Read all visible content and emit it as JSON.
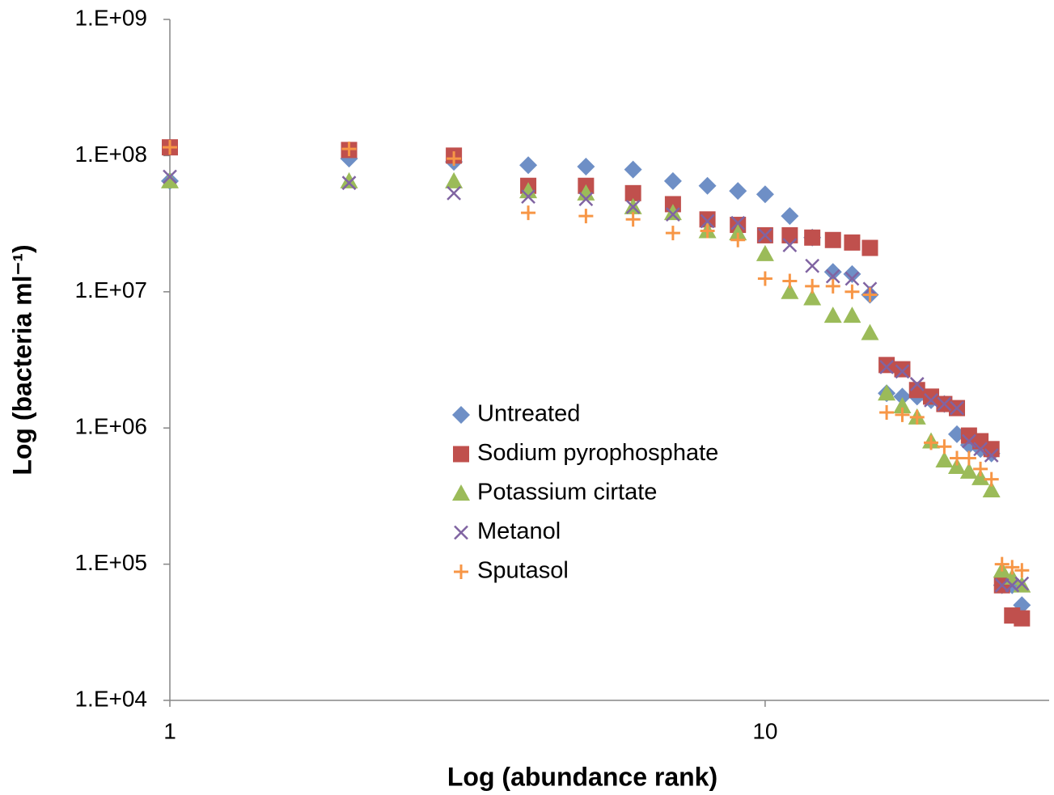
{
  "chart_data": {
    "type": "scatter",
    "x_label": "Log (abundance rank)",
    "y_label": "Log (bacteria ml⁻¹)",
    "xlog": true,
    "ylog": true,
    "xlim": [
      1,
      30
    ],
    "ylim": [
      10000,
      1000000000
    ],
    "xticks": [
      1,
      10
    ],
    "yticks": [
      {
        "value": 10000,
        "label": "1.E+04"
      },
      {
        "value": 100000,
        "label": "1.E+05"
      },
      {
        "value": 1000000,
        "label": "1.E+06"
      },
      {
        "value": 10000000,
        "label": "1.E+07"
      },
      {
        "value": 100000000,
        "label": "1.E+08"
      },
      {
        "value": 1000000000,
        "label": "1.E+09"
      }
    ],
    "x": [
      1,
      2,
      3,
      4,
      5,
      6,
      7,
      8,
      9,
      10,
      11,
      12,
      13,
      14,
      15,
      16,
      17,
      18,
      19,
      20,
      21,
      22,
      23,
      24,
      25,
      26,
      27
    ],
    "series": [
      {
        "name": "Untreated",
        "color": "#6e8fc6",
        "marker": "diamond",
        "values": [
          65000000,
          95000000,
          90000000,
          85000000,
          83000000,
          79000000,
          65000000,
          60000000,
          55000000,
          52000000,
          36000000,
          25000000,
          14000000,
          13500000,
          9500000,
          1800000,
          1700000,
          1700000,
          1600000,
          1500000,
          900000,
          750000,
          700000,
          650000,
          70000,
          70000,
          50000
        ]
      },
      {
        "name": "Sodium pyrophosphate",
        "color": "#c0504d",
        "marker": "square",
        "values": [
          115000000,
          110000000,
          100000000,
          60000000,
          60000000,
          53000000,
          44000000,
          34000000,
          31000000,
          26000000,
          26000000,
          25000000,
          24000000,
          23000000,
          21000000,
          2900000,
          2700000,
          1900000,
          1700000,
          1500000,
          1400000,
          880000,
          800000,
          700000,
          70000,
          42000,
          40000
        ]
      },
      {
        "name": "Potassium cirtate",
        "color": "#9bbb59",
        "marker": "triangle",
        "values": [
          65000000,
          65000000,
          65000000,
          55000000,
          53000000,
          42000000,
          38000000,
          28000000,
          27000000,
          19000000,
          10000000,
          9000000,
          6700000,
          6700000,
          5000000,
          1800000,
          1450000,
          1200000,
          800000,
          580000,
          520000,
          480000,
          430000,
          350000,
          90000,
          80000,
          70000
        ]
      },
      {
        "name": "Metanol",
        "color": "#8064a2",
        "marker": "cross",
        "values": [
          70000000,
          63000000,
          53000000,
          50000000,
          48000000,
          42000000,
          37000000,
          33000000,
          32000000,
          26000000,
          22000000,
          15500000,
          13000000,
          12500000,
          10500000,
          2800000,
          2600000,
          2100000,
          1600000,
          1500000,
          1400000,
          800000,
          700000,
          630000,
          70000,
          70000,
          72000
        ]
      },
      {
        "name": "Sputasol",
        "color": "#f79646",
        "marker": "plus",
        "values": [
          115000000,
          112000000,
          95000000,
          38000000,
          36000000,
          34000000,
          27000000,
          28000000,
          24000000,
          12500000,
          12000000,
          11000000,
          11000000,
          10000000,
          9500000,
          1300000,
          1250000,
          1200000,
          780000,
          730000,
          600000,
          600000,
          500000,
          420000,
          100000,
          95000,
          90000
        ]
      }
    ]
  }
}
